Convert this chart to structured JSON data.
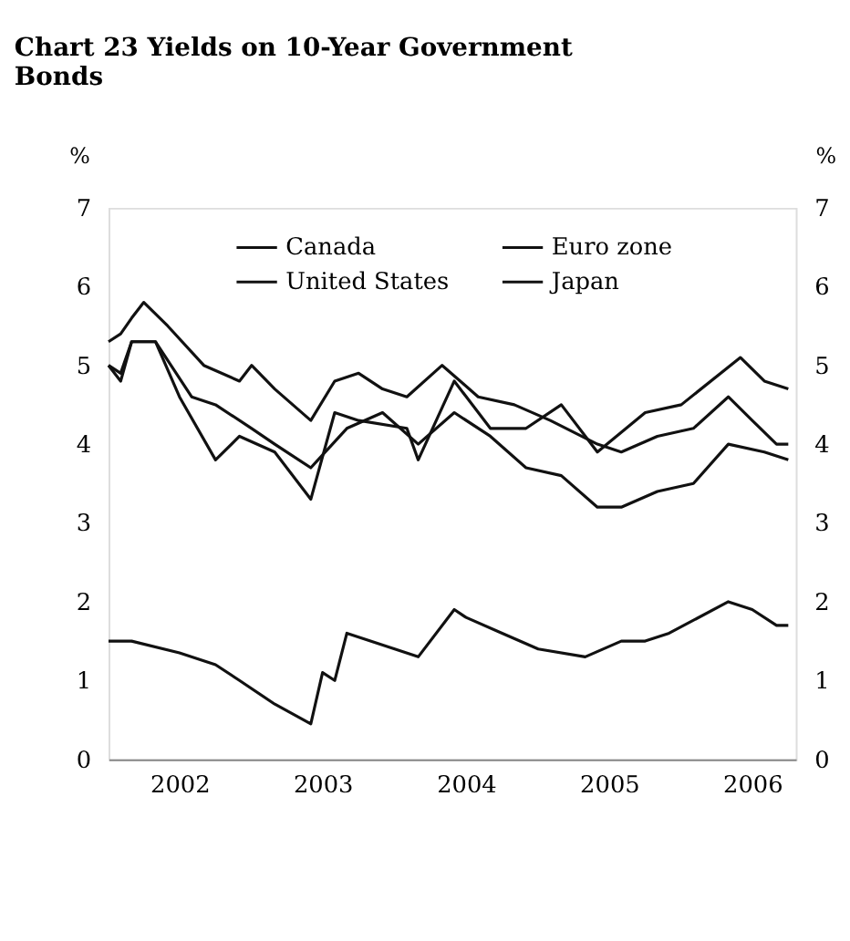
{
  "chart_data": {
    "type": "line",
    "title": "Chart 23  Yields on 10-Year Government Bonds",
    "ylabel": "%",
    "y2label": "%",
    "ylim": [
      0,
      7
    ],
    "yticks": [
      0,
      1,
      2,
      3,
      4,
      5,
      6,
      7
    ],
    "y2lim": [
      0,
      7
    ],
    "y2ticks": [
      0,
      1,
      2,
      3,
      4,
      5,
      6,
      7
    ],
    "xlim": [
      "2002-01-01",
      "2006-10-20"
    ],
    "xticks": [
      {
        "value": "2002-07-01",
        "label": "2002"
      },
      {
        "value": "2003-07-01",
        "label": "2003"
      },
      {
        "value": "2004-07-01",
        "label": "2004"
      },
      {
        "value": "2005-07-01",
        "label": "2005"
      },
      {
        "value": "2006-07-01",
        "label": "2006"
      }
    ],
    "legend": "top",
    "grid": false,
    "marker": "none",
    "line_style": "solid",
    "series": [
      {
        "name": "Canada",
        "color": "#111111",
        "x": [
          "2002-01",
          "2002-02",
          "2002-03",
          "2002-04",
          "2002-06",
          "2002-09",
          "2002-12",
          "2003-01",
          "2003-03",
          "2003-06",
          "2003-08",
          "2003-10",
          "2003-12",
          "2004-02",
          "2004-05",
          "2004-08",
          "2004-11",
          "2005-02",
          "2005-06",
          "2005-08",
          "2005-11",
          "2006-02",
          "2006-05",
          "2006-07",
          "2006-09",
          "2006-10"
        ],
        "values": [
          5.3,
          5.4,
          5.6,
          5.8,
          5.5,
          5.0,
          4.8,
          5.0,
          4.7,
          4.3,
          4.8,
          4.9,
          4.7,
          4.6,
          5.0,
          4.6,
          4.5,
          4.3,
          4.0,
          3.9,
          4.1,
          4.2,
          4.6,
          4.3,
          4.0,
          4.0
        ]
      },
      {
        "name": "Euro zone",
        "color": "#111111",
        "x": [
          "2002-01",
          "2002-02",
          "2002-03",
          "2002-05",
          "2002-08",
          "2002-10",
          "2003-01",
          "2003-03",
          "2003-06",
          "2003-09",
          "2003-12",
          "2004-03",
          "2004-06",
          "2004-09",
          "2004-12",
          "2005-03",
          "2005-06",
          "2005-08",
          "2005-11",
          "2006-02",
          "2006-05",
          "2006-08",
          "2006-10"
        ],
        "values": [
          5.0,
          4.9,
          5.3,
          5.3,
          4.6,
          4.5,
          4.2,
          4.0,
          3.7,
          4.2,
          4.4,
          4.0,
          4.4,
          4.1,
          3.7,
          3.6,
          3.2,
          3.2,
          3.4,
          3.5,
          4.0,
          3.9,
          3.8
        ]
      },
      {
        "name": "United States",
        "color": "#111111",
        "x": [
          "2002-01",
          "2002-02",
          "2002-03",
          "2002-05",
          "2002-07",
          "2002-10",
          "2002-12",
          "2003-03",
          "2003-06",
          "2003-08",
          "2003-10",
          "2004-02",
          "2004-03",
          "2004-06",
          "2004-09",
          "2004-12",
          "2005-03",
          "2005-06",
          "2005-10",
          "2006-01",
          "2006-06",
          "2006-08",
          "2006-10"
        ],
        "values": [
          5.0,
          4.8,
          5.3,
          5.3,
          4.6,
          3.8,
          4.1,
          3.9,
          3.3,
          4.4,
          4.3,
          4.2,
          3.8,
          4.8,
          4.2,
          4.2,
          4.5,
          3.9,
          4.4,
          4.5,
          5.1,
          4.8,
          4.7
        ]
      },
      {
        "name": "Japan",
        "color": "#111111",
        "x": [
          "2002-01",
          "2002-03",
          "2002-07",
          "2002-10",
          "2002-12",
          "2003-03",
          "2003-06",
          "2003-07",
          "2003-08",
          "2003-09",
          "2004-01",
          "2004-03",
          "2004-06",
          "2004-07",
          "2004-10",
          "2005-01",
          "2005-05",
          "2005-08",
          "2005-10",
          "2005-12",
          "2006-05",
          "2006-07",
          "2006-09",
          "2006-10"
        ],
        "values": [
          1.5,
          1.5,
          1.35,
          1.2,
          1.0,
          0.7,
          0.45,
          1.1,
          1.0,
          1.6,
          1.4,
          1.3,
          1.9,
          1.8,
          1.6,
          1.4,
          1.3,
          1.5,
          1.5,
          1.6,
          2.0,
          1.9,
          1.7,
          1.7
        ]
      }
    ]
  }
}
